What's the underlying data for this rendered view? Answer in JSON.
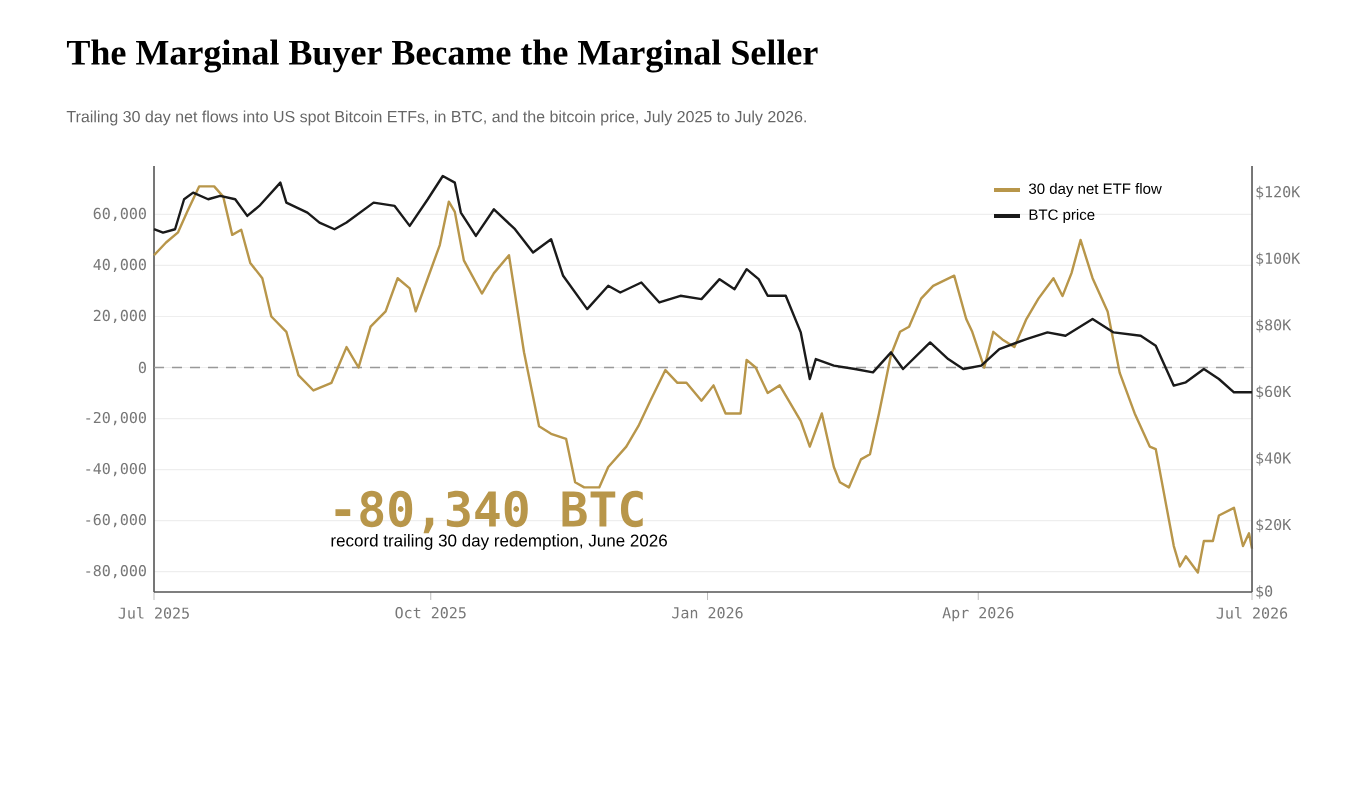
{
  "chart_data": {
    "type": "line",
    "title": "The Marginal Buyer Became the Marginal Seller",
    "subtitle": "Trailing 30 day net flows into US spot Bitcoin ETFs, in BTC, and the bitcoin price, July 2025 to July 2026.",
    "annotations": [
      "-80,340 BTC",
      "record trailing 30 day redemption, June 2026"
    ],
    "xlim": [
      "2025-07-01",
      "2026-07-01"
    ],
    "xticks": [
      {
        "value": "2025-07-01",
        "label": "Jul 2025"
      },
      {
        "value": "2025-10-01",
        "label": "Oct 2025"
      },
      {
        "value": "2026-01-01",
        "label": "Jan 2026"
      },
      {
        "value": "2026-04-01",
        "label": "Apr 2026"
      },
      {
        "value": "2026-07-01",
        "label": "Jul 2026"
      }
    ],
    "ylim": [
      -88000,
      79000
    ],
    "yticks": [
      {
        "value": -80000,
        "label": "-80,000"
      },
      {
        "value": -60000,
        "label": "-60,000"
      },
      {
        "value": -40000,
        "label": "-40,000"
      },
      {
        "value": -20000,
        "label": "-20,000"
      },
      0,
      {
        "value": 20000,
        "label": "20,000"
      },
      {
        "value": 40000,
        "label": "40,000"
      },
      {
        "value": 60000,
        "label": "60,000"
      }
    ],
    "y2lim": [
      0,
      128000
    ],
    "y2ticks": [
      {
        "value": 0,
        "label": "$0"
      },
      {
        "value": 20000,
        "label": "$20K"
      },
      {
        "value": 40000,
        "label": "$40K"
      },
      {
        "value": 60000,
        "label": "$60K"
      },
      {
        "value": 80000,
        "label": "$80K"
      },
      {
        "value": 100000,
        "label": "$100K"
      },
      {
        "value": 120000,
        "label": "$120K"
      }
    ],
    "grid": "y",
    "legend": "top right",
    "ref_lines": [
      {
        "axis": "y",
        "value": 0,
        "color": "#999999",
        "line_style": "dashed"
      }
    ],
    "series": [
      {
        "name": "30 day net ETF flow",
        "color": "#b8964a",
        "x": [
          "2025-07-01",
          "2025-07-05",
          "2025-07-09",
          "2025-07-12",
          "2025-07-16",
          "2025-07-21",
          "2025-07-24",
          "2025-07-27",
          "2025-07-30",
          "2025-08-02",
          "2025-08-06",
          "2025-08-09",
          "2025-08-14",
          "2025-08-18",
          "2025-08-23",
          "2025-08-27",
          "2025-08-29",
          "2025-09-03",
          "2025-09-07",
          "2025-09-11",
          "2025-09-16",
          "2025-09-20",
          "2025-09-24",
          "2025-09-26",
          "2025-09-30",
          "2025-10-04",
          "2025-10-07",
          "2025-10-09",
          "2025-10-12",
          "2025-10-18",
          "2025-10-22",
          "2025-10-27",
          "2025-11-01",
          "2025-11-06",
          "2025-11-10",
          "2025-11-15",
          "2025-11-18",
          "2025-11-21",
          "2025-11-26",
          "2025-11-29",
          "2025-12-05",
          "2025-12-09",
          "2025-12-13",
          "2025-12-18",
          "2025-12-22",
          "2025-12-25",
          "2025-12-30",
          "2026-01-03",
          "2026-01-07",
          "2026-01-12",
          "2026-01-14",
          "2026-01-17",
          "2026-01-21",
          "2026-01-25",
          "2026-01-28",
          "2026-02-01",
          "2026-02-04",
          "2026-02-08",
          "2026-02-12",
          "2026-02-14",
          "2026-02-17",
          "2026-02-21",
          "2026-02-24",
          "2026-02-27",
          "2026-03-03",
          "2026-03-06",
          "2026-03-09",
          "2026-03-13",
          "2026-03-17",
          "2026-03-24",
          "2026-03-28",
          "2026-03-30",
          "2026-04-03",
          "2026-04-06",
          "2026-04-09",
          "2026-04-13",
          "2026-04-17",
          "2026-04-21",
          "2026-04-26",
          "2026-04-29",
          "2026-05-02",
          "2026-05-05",
          "2026-05-09",
          "2026-05-14",
          "2026-05-18",
          "2026-05-23",
          "2026-05-28",
          "2026-05-30",
          "2026-06-05",
          "2026-06-07",
          "2026-06-09",
          "2026-06-13",
          "2026-06-15",
          "2026-06-18",
          "2026-06-20",
          "2026-06-25",
          "2026-06-28",
          "2026-06-30",
          "2026-07-01"
        ],
        "values": [
          44000,
          49000,
          53000,
          61000,
          71000,
          71000,
          67000,
          52000,
          54000,
          41000,
          35000,
          20000,
          14000,
          -3000,
          -9000,
          -7000,
          -6000,
          8000,
          0,
          16000,
          22000,
          35000,
          31000,
          22000,
          35000,
          48000,
          65000,
          61000,
          42000,
          29000,
          37000,
          44000,
          6000,
          -23000,
          -26000,
          -28000,
          -45000,
          -47000,
          -47000,
          -39000,
          -31000,
          -23000,
          -13000,
          -1000,
          -6000,
          -6000,
          -13000,
          -7000,
          -18000,
          -18000,
          3000,
          0,
          -10000,
          -7000,
          -13000,
          -21000,
          -31000,
          -18000,
          -39000,
          -45000,
          -47000,
          -36000,
          -34000,
          -18000,
          5000,
          14000,
          16000,
          27000,
          32000,
          36000,
          19000,
          14000,
          0,
          14000,
          11000,
          8000,
          19000,
          27000,
          35000,
          28000,
          37000,
          50000,
          35000,
          22000,
          -2000,
          -18000,
          -31000,
          -32000,
          -70000,
          -78000,
          -74000,
          -80340,
          -68000,
          -68000,
          -58000,
          -55000,
          -70000,
          -65000,
          -71000
        ]
      },
      {
        "name": "BTC price",
        "color": "#1a1a1a",
        "axis": "y2",
        "x": [
          "2025-07-01",
          "2025-07-04",
          "2025-07-08",
          "2025-07-11",
          "2025-07-14",
          "2025-07-19",
          "2025-07-23",
          "2025-07-28",
          "2025-08-01",
          "2025-08-05",
          "2025-08-12",
          "2025-08-14",
          "2025-08-21",
          "2025-08-25",
          "2025-08-30",
          "2025-09-03",
          "2025-09-12",
          "2025-09-19",
          "2025-09-24",
          "2025-09-30",
          "2025-10-05",
          "2025-10-09",
          "2025-10-11",
          "2025-10-16",
          "2025-10-22",
          "2025-10-29",
          "2025-11-04",
          "2025-11-10",
          "2025-11-14",
          "2025-11-22",
          "2025-11-29",
          "2025-12-03",
          "2025-12-10",
          "2025-12-16",
          "2025-12-23",
          "2025-12-30",
          "2026-01-05",
          "2026-01-10",
          "2026-01-14",
          "2026-01-18",
          "2026-01-21",
          "2026-01-27",
          "2026-02-01",
          "2026-02-04",
          "2026-02-06",
          "2026-02-12",
          "2026-02-19",
          "2026-02-25",
          "2026-03-03",
          "2026-03-07",
          "2026-03-16",
          "2026-03-22",
          "2026-03-27",
          "2026-04-02",
          "2026-04-08",
          "2026-04-17",
          "2026-04-24",
          "2026-04-30",
          "2026-05-09",
          "2026-05-16",
          "2026-05-25",
          "2026-05-30",
          "2026-06-05",
          "2026-06-09",
          "2026-06-15",
          "2026-06-20",
          "2026-06-25",
          "2026-07-01"
        ],
        "values": [
          109000,
          108000,
          109000,
          118000,
          120000,
          118000,
          119000,
          118000,
          113000,
          116000,
          123000,
          117000,
          114000,
          111000,
          109000,
          111000,
          117000,
          116000,
          110000,
          118000,
          125000,
          123000,
          114000,
          107000,
          115000,
          109000,
          102000,
          106000,
          95000,
          85000,
          92000,
          90000,
          93000,
          87000,
          89000,
          88000,
          94000,
          91000,
          97000,
          94000,
          89000,
          89000,
          78000,
          64000,
          70000,
          68000,
          67000,
          66000,
          72000,
          67000,
          75000,
          70000,
          67000,
          68000,
          73000,
          76000,
          78000,
          77000,
          82000,
          78000,
          77000,
          74000,
          62000,
          63000,
          67000,
          64000,
          60000,
          60000
        ]
      }
    ]
  }
}
